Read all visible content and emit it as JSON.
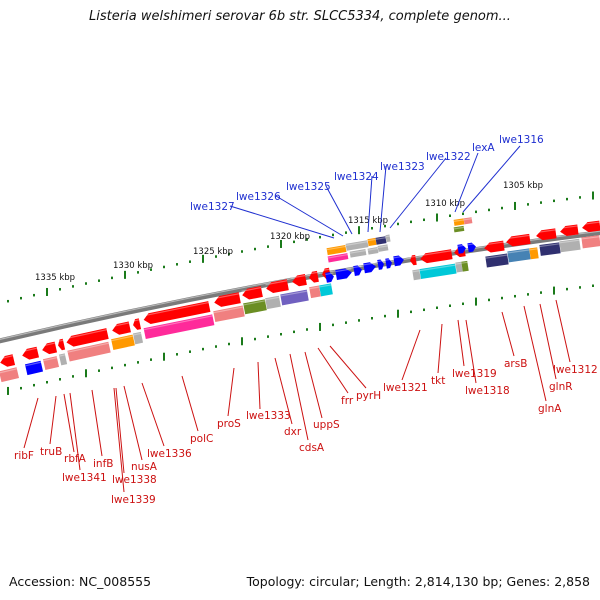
{
  "title": "Listeria welshimeri serovar 6b str. SLCC5334, complete genom...",
  "footer": {
    "accession": "Accession: NC_008555",
    "topology": "Topology: circular; Length: 2,814,130 bp; Genes: 2,858"
  },
  "colors": {
    "upper_labels": "#1f2fd0",
    "lower_labels": "#cc1111",
    "ticks": "#1a7a1a",
    "backbone": "#7a7a7a",
    "gene_red": "#ff0000",
    "gene_blue": "#0000ff",
    "gene_pink": "#ff2a9a",
    "gene_salmon": "#f08080",
    "gene_orange": "#ff9900",
    "gene_olive": "#6b8e23",
    "gene_purple": "#7060c0",
    "gene_cyan": "#00c8d8",
    "gene_gray": "#b0b0b0",
    "gene_navy": "#303070",
    "gene_steel": "#4682b4"
  },
  "scale_labels": [
    "1335 kbp",
    "1330 kbp",
    "1325 kbp",
    "1320 kbp",
    "1315 kbp",
    "1310 kbp",
    "1305 kbp"
  ],
  "upper_gene_labels": [
    "lwe1327",
    "lwe1326",
    "lwe1325",
    "lwe1324",
    "lwe1323",
    "lwe1322",
    "lexA",
    "lwe1316"
  ],
  "lower_gene_labels": [
    "ribF",
    "truB",
    "rbfA",
    "lwe1341",
    "infB",
    "lwe1338",
    "lwe1339",
    "nusA",
    "lwe1336",
    "polC",
    "proS",
    "lwe1333",
    "dxr",
    "cdsA",
    "uppS",
    "frr",
    "pyrH",
    "lwe1321",
    "tkt",
    "lwe1319",
    "lwe1318",
    "arsB",
    "glnR",
    "glnA",
    "lwe1312"
  ]
}
